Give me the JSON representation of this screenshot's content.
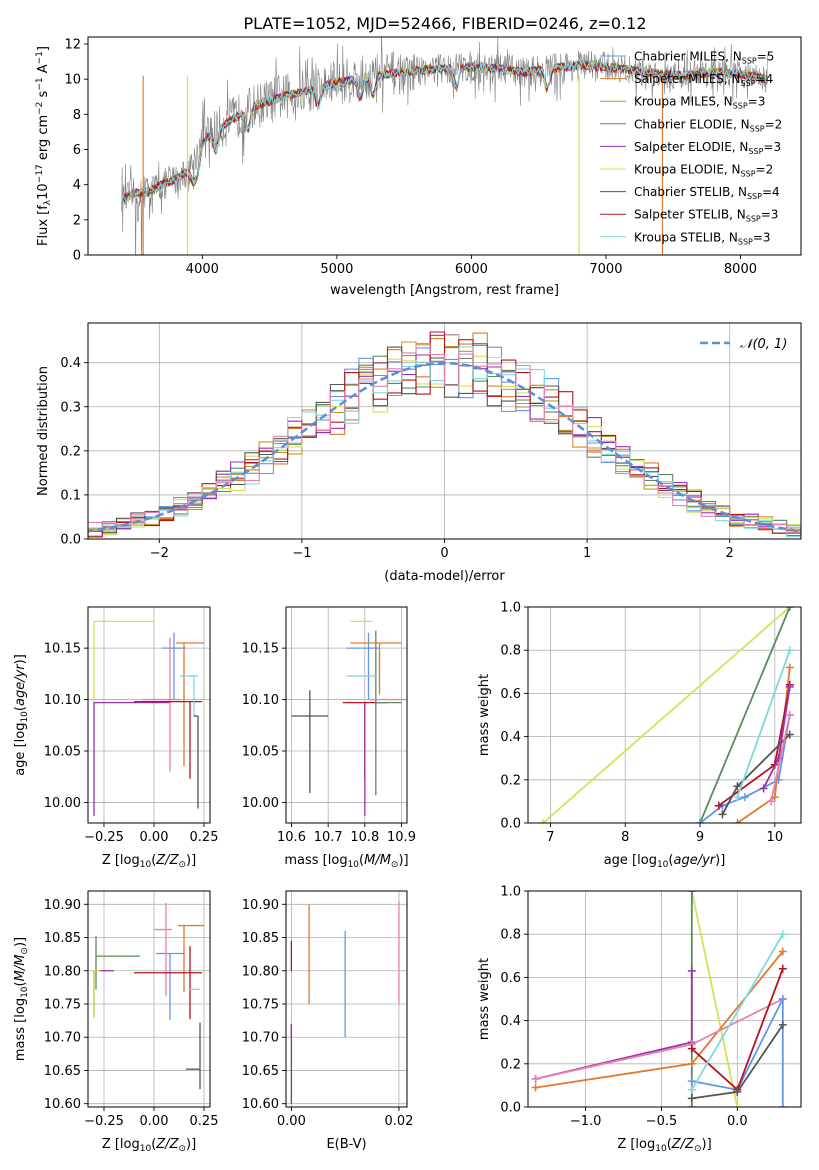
{
  "title": "PLATE=1052, MJD=52466, FIBERID=0246, z=0.12",
  "colors": {
    "chabrier_miles": "#6495ed",
    "salpeter_miles": "#e07a2e",
    "kroupa_miles": "#c8961e",
    "chabrier_elodie": "#5b8a5e",
    "salpeter_elodie": "#9b30b5",
    "kroupa_elodie": "#d4e157",
    "chabrier_stelib": "#555555",
    "salpeter_stelib": "#b5141e",
    "kroupa_stelib": "#7fd8e0",
    "pink": "#e87fb0",
    "data_grey": "#808080",
    "gauss": "#5b8fd6"
  },
  "chart_data": [
    {
      "panel": "spectrum",
      "type": "line",
      "xlabel": "wavelength [Angstrom, rest frame]",
      "ylabel": "Flux [f_λ 10^-17 erg cm^-2 s^-1 A^-1]",
      "xlim": [
        3150,
        8450
      ],
      "ylim": [
        0,
        12.4
      ],
      "xticks": [
        4000,
        5000,
        6000,
        7000,
        8000
      ],
      "yticks": [
        0,
        2,
        4,
        6,
        8,
        10,
        12
      ],
      "continuum_x": [
        3400,
        3500,
        3600,
        3700,
        3800,
        3900,
        4000,
        4200,
        4400,
        4600,
        4800,
        5000,
        5200,
        5400,
        5600,
        5800,
        6000,
        6200,
        6400,
        6600,
        6800,
        7000,
        7200,
        7400,
        7600,
        7800,
        8000,
        8200
      ],
      "continuum_y": [
        3.2,
        3.5,
        3.6,
        4.0,
        4.3,
        4.8,
        6.5,
        7.6,
        8.5,
        9.0,
        9.4,
        9.8,
        10.1,
        10.3,
        10.5,
        10.6,
        10.7,
        10.6,
        10.4,
        10.6,
        10.8,
        10.7,
        10.5,
        10.3,
        10.2,
        10.4,
        10.3,
        10.0
      ],
      "legend": [
        {
          "label": "Chabrier MILES, N_SSP=5",
          "color": "#6495ed"
        },
        {
          "label": "Salpeter MILES, N_SSP=4",
          "color": "#e07a2e"
        },
        {
          "label": "Kroupa MILES, N_SSP=3",
          "color": "#c8961e"
        },
        {
          "label": "Chabrier ELODIE, N_SSP=2",
          "color": "#5b8a5e"
        },
        {
          "label": "Salpeter ELODIE, N_SSP=3",
          "color": "#9b30b5"
        },
        {
          "label": "Kroupa ELODIE, N_SSP=2",
          "color": "#d4e157"
        },
        {
          "label": "Chabrier STELIB, N_SSP=4",
          "color": "#555555"
        },
        {
          "label": "Salpeter STELIB, N_SSP=3",
          "color": "#b5141e"
        },
        {
          "label": "Kroupa STELIB, N_SSP=3",
          "color": "#7fd8e0"
        }
      ],
      "legend_parts": [
        {
          "name": "Chabrier MILES, N",
          "sub": "SSP",
          "tail": "=5"
        },
        {
          "name": "Salpeter MILES, N",
          "sub": "SSP",
          "tail": "=4"
        },
        {
          "name": "Kroupa MILES, N",
          "sub": "SSP",
          "tail": "=3"
        },
        {
          "name": "Chabrier ELODIE, N",
          "sub": "SSP",
          "tail": "=2"
        },
        {
          "name": "Salpeter ELODIE, N",
          "sub": "SSP",
          "tail": "=3"
        },
        {
          "name": "Kroupa ELODIE, N",
          "sub": "SSP",
          "tail": "=2"
        },
        {
          "name": "Chabrier STELIB, N",
          "sub": "SSP",
          "tail": "=4"
        },
        {
          "name": "Salpeter STELIB, N",
          "sub": "SSP",
          "tail": "=3"
        },
        {
          "name": "Kroupa STELIB, N",
          "sub": "SSP",
          "tail": "=3"
        }
      ]
    },
    {
      "panel": "residual_histogram",
      "type": "histogram",
      "xlabel": "(data-model)/error",
      "ylabel": "Normed distribution",
      "xlim": [
        -2.5,
        2.5
      ],
      "ylim": [
        0,
        0.49
      ],
      "xticks": [
        -2,
        -1,
        0,
        1,
        2
      ],
      "yticks": [
        0.0,
        0.1,
        0.2,
        0.3,
        0.4
      ],
      "bin_width": 0.1,
      "legend": "N(0,1)",
      "gaussian": {
        "mean": 0,
        "sigma": 1
      }
    },
    {
      "panel": "age_vs_Z",
      "type": "errorbar",
      "xlabel": "Z [log10(Z/Z☉)]",
      "ylabel": "age [log10(age/yr)]",
      "xlim": [
        -0.33,
        0.28
      ],
      "ylim": [
        9.98,
        10.19
      ],
      "xticks": [
        -0.25,
        0.0,
        0.25
      ],
      "yticks": [
        10.0,
        10.05,
        10.1,
        10.15
      ],
      "points": [
        {
          "x": -0.3,
          "y": 10.176,
          "xerr": [
            0.0,
            0.3
          ],
          "yerr": [
            0.08,
            0.0
          ],
          "color": "#d4e157"
        },
        {
          "x": -0.3,
          "y": 10.097,
          "xerr": [
            0.0,
            0.38
          ],
          "yerr": [
            0.11,
            0.0
          ],
          "color": "#9b30b5"
        },
        {
          "x": 0.1,
          "y": 10.15,
          "xerr": [
            0.06,
            0.06
          ],
          "yerr": [
            0.05,
            0.015
          ],
          "color": "#6495ed"
        },
        {
          "x": 0.15,
          "y": 10.155,
          "xerr": [
            0.04,
            0.1
          ],
          "yerr": [
            0.12,
            0.0
          ],
          "color": "#e07a2e"
        },
        {
          "x": 0.08,
          "y": 10.1,
          "xerr": [
            0.14,
            0.05
          ],
          "yerr": [
            0.07,
            0.06
          ],
          "color": "#e87fb0"
        },
        {
          "x": 0.18,
          "y": 10.098,
          "xerr": [
            0.28,
            0.06
          ],
          "yerr": [
            0.075,
            0.0
          ],
          "color": "#b5141e"
        },
        {
          "x": 0.2,
          "y": 10.123,
          "xerr": [
            0.07,
            0.02
          ],
          "yerr": [
            0.04,
            0.0
          ],
          "color": "#7fd8e0"
        },
        {
          "x": 0.22,
          "y": 10.084,
          "xerr": [
            0.02,
            0.0
          ],
          "yerr": [
            0.09,
            0.0
          ],
          "color": "#555555"
        }
      ]
    },
    {
      "panel": "age_vs_mass",
      "type": "errorbar",
      "xlabel": "mass [log10(M/M☉)]",
      "ylabel": "",
      "xlim": [
        10.585,
        10.915
      ],
      "ylim": [
        9.98,
        10.19
      ],
      "xticks": [
        10.6,
        10.7,
        10.8,
        10.9
      ],
      "yticks": [
        10.0,
        10.05,
        10.1,
        10.15
      ],
      "points": [
        {
          "x": 10.65,
          "y": 10.084,
          "xerr": [
            0.05,
            0.05
          ],
          "yerr": [
            0.075,
            0.025
          ],
          "color": "#555555"
        },
        {
          "x": 10.8,
          "y": 10.097,
          "xerr": [
            0.06,
            0.06
          ],
          "yerr": [
            0.075,
            0.0
          ],
          "color": "#b5141e"
        },
        {
          "x": 10.81,
          "y": 10.15,
          "xerr": [
            0.06,
            0.03
          ],
          "yerr": [
            0.05,
            0.015
          ],
          "color": "#6495ed"
        },
        {
          "x": 10.83,
          "y": 10.097,
          "xerr": [
            0.0,
            0.07
          ],
          "yerr": [
            0.09,
            0.07
          ],
          "color": "#5b8a5e"
        },
        {
          "x": 10.84,
          "y": 10.155,
          "xerr": [
            0.08,
            0.06
          ],
          "yerr": [
            0.05,
            0.0
          ],
          "color": "#e07a2e"
        },
        {
          "x": 10.82,
          "y": 10.176,
          "xerr": [
            0.06,
            0.0
          ],
          "yerr": [
            0.0,
            0.0
          ],
          "color": "#d4e157"
        },
        {
          "x": 10.85,
          "y": 10.1,
          "xerr": [
            0.04,
            0.06
          ],
          "yerr": [
            0.0,
            0.0
          ],
          "color": "#e87fb0"
        },
        {
          "x": 10.8,
          "y": 10.097,
          "xerr": [
            0.0,
            0.0
          ],
          "yerr": [
            0.11,
            0.0
          ],
          "color": "#9b30b5"
        },
        {
          "x": 10.79,
          "y": 10.123,
          "xerr": [
            0.04,
            0.04
          ],
          "yerr": [
            0.0,
            0.0
          ],
          "color": "#7fd8e0"
        }
      ]
    },
    {
      "panel": "cumulative_age",
      "type": "line",
      "xlabel": "age [log10(age/yr)]",
      "ylabel": "mass weight",
      "xlim": [
        6.7,
        10.35
      ],
      "ylim": [
        0,
        1.0
      ],
      "xticks": [
        7,
        8,
        9,
        10
      ],
      "yticks": [
        0.0,
        0.2,
        0.4,
        0.6,
        0.8,
        1.0
      ],
      "series": [
        {
          "color": "#d4e157",
          "x": [
            6.9,
            10.2
          ],
          "y": [
            0.0,
            1.0
          ]
        },
        {
          "color": "#5b8a5e",
          "x": [
            9.0,
            10.2
          ],
          "y": [
            0.0,
            1.0
          ]
        },
        {
          "color": "#6495ed",
          "x": [
            9.0,
            9.3,
            9.6,
            10.05,
            10.2
          ],
          "y": [
            0.0,
            0.08,
            0.12,
            0.2,
            0.5
          ]
        },
        {
          "color": "#e07a2e",
          "x": [
            9.5,
            10.0,
            10.2
          ],
          "y": [
            0.0,
            0.12,
            0.72
          ]
        },
        {
          "color": "#b5141e",
          "x": [
            9.25,
            10.0,
            10.2
          ],
          "y": [
            0.08,
            0.27,
            0.64
          ]
        },
        {
          "color": "#555555",
          "x": [
            9.3,
            9.5,
            10.2
          ],
          "y": [
            0.04,
            0.17,
            0.41
          ]
        },
        {
          "color": "#9b30b5",
          "x": [
            9.85,
            10.05,
            10.2
          ],
          "y": [
            0.16,
            0.3,
            0.63
          ]
        },
        {
          "color": "#7fd8e0",
          "x": [
            9.5,
            10.2
          ],
          "y": [
            0.12,
            0.8
          ]
        },
        {
          "color": "#e87fb0",
          "x": [
            9.95,
            10.2
          ],
          "y": [
            0.1,
            0.5
          ]
        }
      ]
    },
    {
      "panel": "mass_vs_Z",
      "type": "errorbar",
      "xlabel": "Z [log10(Z/Z☉)]",
      "ylabel": "mass [log10(M/M☉)]",
      "xlim": [
        -0.33,
        0.28
      ],
      "ylim": [
        10.595,
        10.92
      ],
      "xticks": [
        -0.25,
        0.0,
        0.25
      ],
      "yticks": [
        10.6,
        10.65,
        10.7,
        10.75,
        10.8,
        10.85,
        10.9
      ],
      "points": [
        {
          "x": -0.3,
          "y": 10.8,
          "xerr": [
            0.0,
            0.1
          ],
          "yerr": [
            0.07,
            0.0
          ],
          "color": "#9b30b5"
        },
        {
          "x": -0.29,
          "y": 10.822,
          "xerr": [
            0.0,
            0.22
          ],
          "yerr": [
            0.05,
            0.03
          ],
          "color": "#5b8a5e"
        },
        {
          "x": -0.3,
          "y": 10.8,
          "xerr": [
            0.0,
            0.03
          ],
          "yerr": [
            0.07,
            0.0
          ],
          "color": "#d4e157"
        },
        {
          "x": 0.08,
          "y": 10.826,
          "xerr": [
            0.07,
            0.07
          ],
          "yerr": [
            0.1,
            0.0
          ],
          "color": "#6495ed"
        },
        {
          "x": 0.15,
          "y": 10.868,
          "xerr": [
            0.03,
            0.1
          ],
          "yerr": [
            0.1,
            0.0
          ],
          "color": "#e07a2e"
        },
        {
          "x": 0.06,
          "y": 10.862,
          "xerr": [
            0.06,
            0.03
          ],
          "yerr": [
            0.1,
            0.04
          ],
          "color": "#e87fb0"
        },
        {
          "x": 0.18,
          "y": 10.797,
          "xerr": [
            0.28,
            0.06
          ],
          "yerr": [
            0.07,
            0.04
          ],
          "color": "#b5141e"
        },
        {
          "x": 0.2,
          "y": 10.772,
          "xerr": [
            0.03,
            0.03
          ],
          "yerr": [
            0.0,
            0.0
          ],
          "color": "#7fd8e0"
        },
        {
          "x": 0.23,
          "y": 10.652,
          "xerr": [
            0.07,
            0.0
          ],
          "yerr": [
            0.03,
            0.07
          ],
          "color": "#555555"
        }
      ]
    },
    {
      "panel": "mass_vs_EBV",
      "type": "errorbar",
      "xlabel": "E(B-V)",
      "ylabel": "",
      "xlim": [
        -0.001,
        0.0215
      ],
      "ylim": [
        10.595,
        10.92
      ],
      "xticks": [
        0.0,
        0.02
      ],
      "yticks": [
        10.6,
        10.65,
        10.7,
        10.75,
        10.8,
        10.85,
        10.9
      ],
      "points": [
        {
          "x": 0.0,
          "y": 10.82,
          "xerr": [
            0,
            0
          ],
          "yerr": [
            0.02,
            0.025
          ],
          "color": "#b5141e"
        },
        {
          "x": 0.0,
          "y": 10.7,
          "xerr": [
            0,
            0
          ],
          "yerr": [
            0.1,
            0.02
          ],
          "color": "#555555"
        },
        {
          "x": 0.0,
          "y": 10.7,
          "xerr": [
            0,
            0
          ],
          "yerr": [
            0.0,
            0.02
          ],
          "color": "#9b30b5"
        },
        {
          "x": 0.0033,
          "y": 10.825,
          "xerr": [
            0,
            0
          ],
          "yerr": [
            0.075,
            0.075
          ],
          "color": "#e07a2e"
        },
        {
          "x": 0.01,
          "y": 10.78,
          "xerr": [
            0,
            0
          ],
          "yerr": [
            0.08,
            0.08
          ],
          "color": "#6495ed"
        },
        {
          "x": 0.02,
          "y": 10.825,
          "xerr": [
            0,
            0
          ],
          "yerr": [
            0.075,
            0.08
          ],
          "color": "#e87fb0"
        }
      ]
    },
    {
      "panel": "cumulative_Z",
      "type": "line",
      "xlabel": "Z [log10(Z/Z☉)]",
      "ylabel": "mass weight",
      "xlim": [
        -1.38,
        0.42
      ],
      "ylim": [
        0,
        1.0
      ],
      "xticks": [
        -1.0,
        -0.5,
        0.0
      ],
      "yticks": [
        0.0,
        0.2,
        0.4,
        0.6,
        0.8,
        1.0
      ],
      "series": [
        {
          "color": "#d4e157",
          "x": [
            -0.3,
            0.0
          ],
          "y": [
            1.0,
            0.0
          ]
        },
        {
          "color": "#5b8a5e",
          "x": [
            -0.3,
            -0.3
          ],
          "y": [
            1.0,
            0.0
          ]
        },
        {
          "color": "#9b30b5",
          "x": [
            -1.33,
            -0.3,
            -0.3
          ],
          "y": [
            0.13,
            0.3,
            0.63
          ]
        },
        {
          "color": "#e07a2e",
          "x": [
            -1.33,
            -0.3,
            0.3
          ],
          "y": [
            0.09,
            0.2,
            0.72
          ]
        },
        {
          "color": "#e87fb0",
          "x": [
            -1.33,
            -0.3,
            0.3
          ],
          "y": [
            0.13,
            0.29,
            0.5
          ]
        },
        {
          "color": "#6495ed",
          "x": [
            -0.3,
            0.0,
            0.3,
            0.3
          ],
          "y": [
            0.12,
            0.08,
            0.5,
            0.0
          ]
        },
        {
          "color": "#b5141e",
          "x": [
            -0.3,
            0.0,
            0.3
          ],
          "y": [
            0.27,
            0.08,
            0.64
          ]
        },
        {
          "color": "#555555",
          "x": [
            -0.3,
            0.0,
            0.3
          ],
          "y": [
            0.04,
            0.07,
            0.38
          ]
        },
        {
          "color": "#7fd8e0",
          "x": [
            -0.3,
            0.3
          ],
          "y": [
            0.08,
            0.8
          ]
        }
      ]
    }
  ]
}
